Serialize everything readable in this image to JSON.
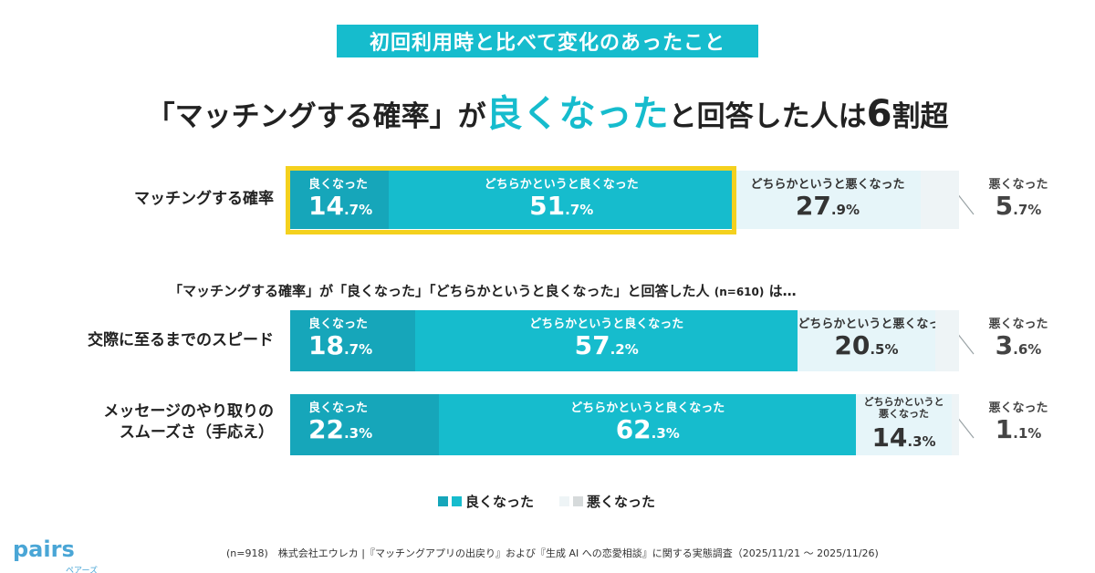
{
  "header": {
    "tag": "初回利用時と比べて変化のあったこと",
    "title_part1": "「マッチングする確率」が",
    "title_highlight": "良くなった",
    "title_part2": "と回答した人は",
    "title_number": "6",
    "title_part3": "割超"
  },
  "sub_note": {
    "text_part1": "「マッチングする確率」が「良くなった」「どちらかというと良くなった」と回答した人",
    "n": "(n=610)",
    "text_part2": "は…"
  },
  "legend": {
    "good": "良くなった",
    "bad": "悪くなった"
  },
  "colors": {
    "good_dark": "#16a6ba",
    "good": "#16bccd",
    "bad_light": "#e6f5f9",
    "bad": "#eef4f6",
    "accent": "#16bccd",
    "highlight": "#f4d11e"
  },
  "logo": {
    "word": "pairs",
    "kana": "ペアーズ"
  },
  "footnote": "(n=918)　株式会社エウレカ |『マッチングアプリの出戻り』および『生成 AI への恋愛相談』に関する実態調査（2025/11/21 ～ 2025/11/26)",
  "chart_data": {
    "type": "bar",
    "orientation": "horizontal-stacked-100",
    "unit": "%",
    "categories": [
      "マッチングする確率",
      "交際に至るまでのスピード",
      "メッセージのやり取りのスムーズさ（手応え）"
    ],
    "category_lines": [
      [
        "マッチングする確率"
      ],
      [
        "交際に至るまでのスピード"
      ],
      [
        "メッセージのやり取りの",
        "スムーズさ（手応え）"
      ]
    ],
    "series": [
      {
        "name": "良くなった",
        "values": [
          14.7,
          18.7,
          22.3
        ],
        "labels": [
          [
            "14",
            ".7%"
          ],
          [
            "18",
            ".7%"
          ],
          [
            "22",
            ".3%"
          ]
        ]
      },
      {
        "name": "どちらかというと良くなった",
        "values": [
          51.7,
          57.2,
          62.3
        ],
        "labels": [
          [
            "51",
            ".7%"
          ],
          [
            "57",
            ".2%"
          ],
          [
            "62",
            ".3%"
          ]
        ]
      },
      {
        "name": "どちらかというと悪くなった",
        "values": [
          27.9,
          20.5,
          14.3
        ],
        "labels": [
          [
            "27",
            ".9%"
          ],
          [
            "20",
            ".5%"
          ],
          [
            "14",
            ".3%"
          ]
        ],
        "row3_label_lines": [
          "どちらかというと",
          "悪くなった"
        ]
      },
      {
        "name": "悪くなった",
        "values": [
          5.7,
          3.6,
          1.1
        ],
        "labels": [
          [
            "5",
            ".7%"
          ],
          [
            "3",
            ".6%"
          ],
          [
            "1",
            ".1%"
          ]
        ]
      }
    ]
  }
}
